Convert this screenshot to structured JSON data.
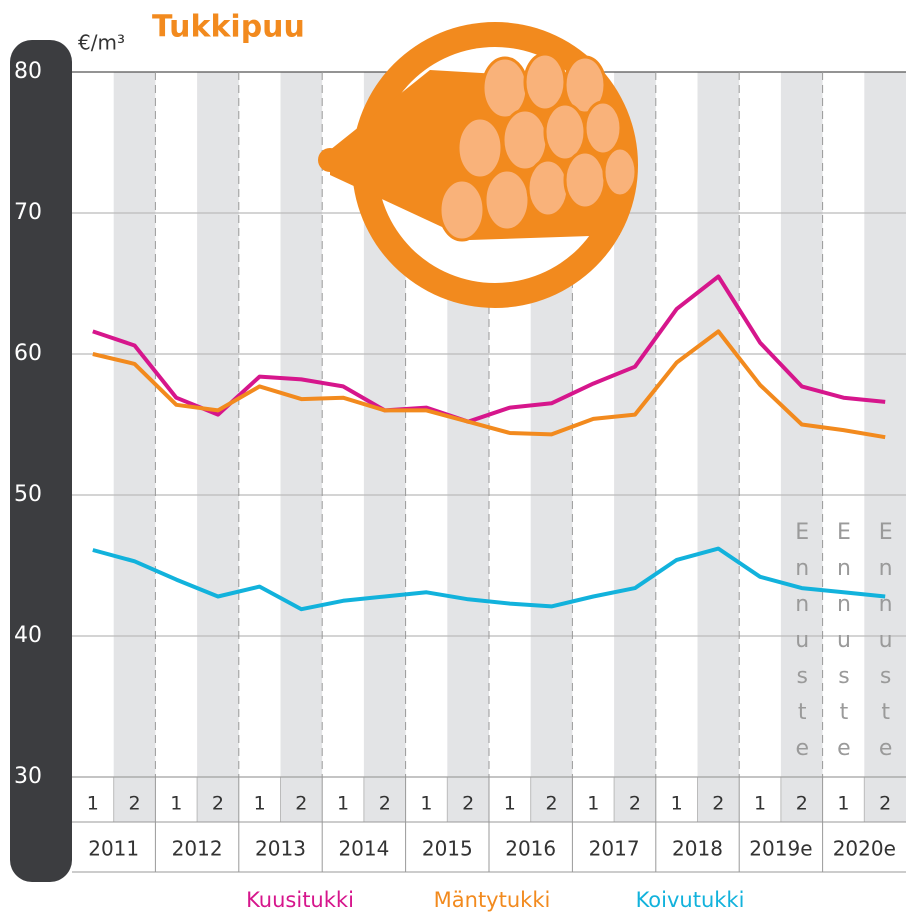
{
  "chart_data": {
    "type": "line",
    "title": "Tukkipuu",
    "y_label": "€/m³",
    "categories": [
      "1",
      "2",
      "1",
      "2",
      "1",
      "2",
      "1",
      "2",
      "1",
      "2",
      "1",
      "2",
      "1",
      "2",
      "1",
      "2",
      "1",
      "2",
      "1",
      "2"
    ],
    "years": [
      "2011",
      "2012",
      "2013",
      "2014",
      "2015",
      "2016",
      "2017",
      "2018",
      "2019e",
      "2020e"
    ],
    "ylim": [
      30,
      80
    ],
    "yticks": [
      30,
      40,
      50,
      60,
      70,
      80
    ],
    "grid": true,
    "annotations": [
      "Ennuste",
      "Ennuste",
      "Ennuste"
    ],
    "series": [
      {
        "name": "Kuusitukki",
        "color": "#d6168c",
        "values": [
          61.6,
          60.6,
          56.9,
          55.7,
          58.4,
          58.2,
          57.7,
          56.0,
          56.2,
          55.2,
          56.2,
          56.5,
          57.9,
          59.1,
          63.2,
          65.5,
          60.8,
          57.7,
          56.9,
          56.6
        ]
      },
      {
        "name": "Mäntytukki",
        "color": "#f28a1e",
        "values": [
          60.0,
          59.3,
          56.4,
          56.0,
          57.7,
          56.8,
          56.9,
          56.0,
          56.0,
          55.2,
          54.4,
          54.3,
          55.4,
          55.7,
          59.4,
          61.6,
          57.8,
          55.0,
          54.6,
          54.1
        ]
      },
      {
        "name": "Koivutukki",
        "color": "#12b2dc",
        "values": [
          46.1,
          45.3,
          44.0,
          42.8,
          43.5,
          41.9,
          42.5,
          42.8,
          43.1,
          42.6,
          42.3,
          42.1,
          42.8,
          43.4,
          45.4,
          46.2,
          44.2,
          43.4,
          43.1,
          42.8
        ]
      }
    ]
  }
}
